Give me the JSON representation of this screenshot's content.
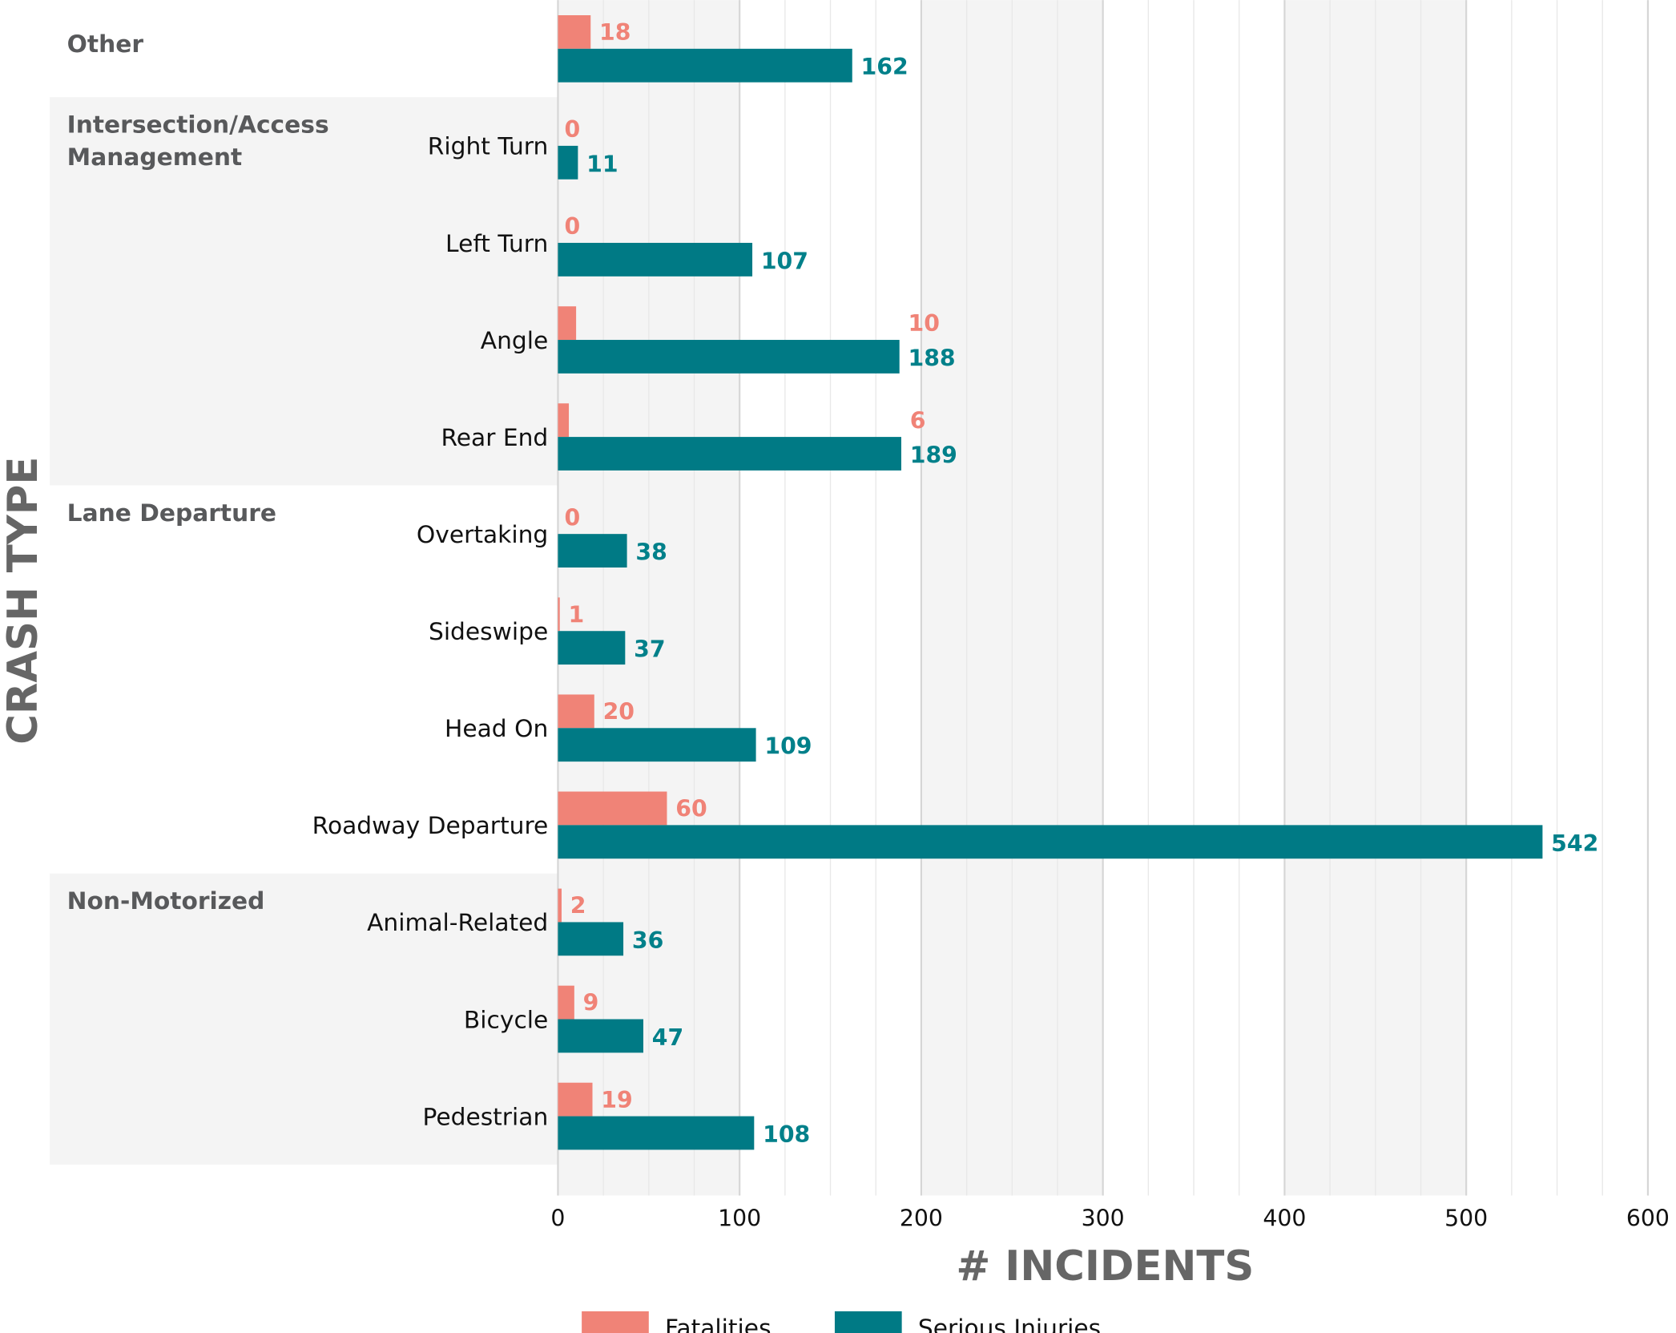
{
  "chart_data": {
    "type": "bar",
    "orientation": "horizontal",
    "xlabel": "# INCIDENTS",
    "ylabel": "CRASH TYPE",
    "xlim": [
      0,
      600
    ],
    "xticks": [
      "0",
      "100",
      "200",
      "300",
      "400",
      "500",
      "600"
    ],
    "grid": true,
    "legend_position": "bottom",
    "colors": {
      "Fatalities": "#f08377",
      "Serious Injuries": "#007a85"
    },
    "groups": [
      {
        "name": "Other",
        "shaded": false,
        "categories": [
          ""
        ]
      },
      {
        "name": "Intersection/Access Management",
        "label_lines": [
          "Intersection/Access",
          "Management"
        ],
        "shaded": true,
        "categories": [
          "Right Turn",
          "Left Turn",
          "Angle",
          "Rear End"
        ]
      },
      {
        "name": "Lane Departure",
        "shaded": false,
        "categories": [
          "Overtaking",
          "Sideswipe",
          "Head On",
          "Roadway Departure"
        ]
      },
      {
        "name": "Non-Motorized",
        "shaded": true,
        "categories": [
          "Animal-Related",
          "Bicycle",
          "Pedestrian"
        ]
      }
    ],
    "categories": [
      "Other",
      "Right Turn",
      "Left Turn",
      "Angle",
      "Rear End",
      "Overtaking",
      "Sideswipe",
      "Head On",
      "Roadway Departure",
      "Animal-Related",
      "Bicycle",
      "Pedestrian"
    ],
    "series": [
      {
        "name": "Fatalities",
        "values": [
          18,
          0,
          0,
          10,
          6,
          0,
          1,
          20,
          60,
          2,
          9,
          19
        ]
      },
      {
        "name": "Serious Injuries",
        "values": [
          162,
          11,
          107,
          188,
          189,
          38,
          37,
          109,
          542,
          36,
          47,
          108
        ]
      }
    ]
  }
}
